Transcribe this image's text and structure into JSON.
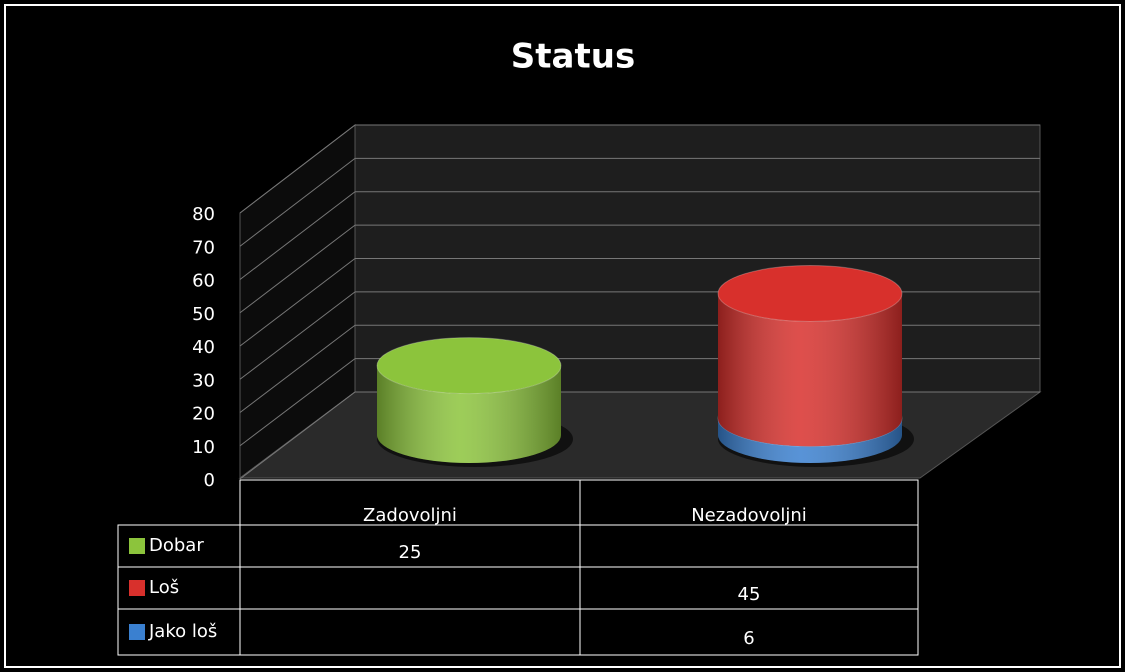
{
  "chart_data": {
    "type": "bar",
    "stacked": true,
    "title": "Status",
    "categories": [
      "Zadovoljni",
      "Nezadovoljni"
    ],
    "series": [
      {
        "name": "Dobar",
        "color": "#8cc43c",
        "values": [
          25,
          null
        ]
      },
      {
        "name": "Loš",
        "color": "#d8302c",
        "values": [
          null,
          45
        ]
      },
      {
        "name": "Jako loš",
        "color": "#3a80d0",
        "values": [
          null,
          6
        ]
      }
    ],
    "ylim": [
      0,
      80
    ],
    "yticks": [
      0,
      10,
      20,
      30,
      40,
      50,
      60,
      70,
      80
    ],
    "grid": true
  }
}
